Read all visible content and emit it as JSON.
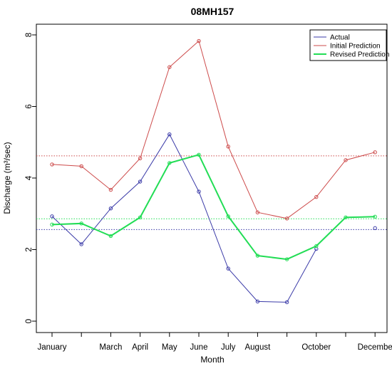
{
  "chart_data": {
    "type": "line",
    "title": "08MH157",
    "xlabel": "Month",
    "ylabel": "Discharge (m³/sec)",
    "ylim": [
      0,
      8
    ],
    "yticks": [
      0,
      2,
      4,
      6,
      8
    ],
    "x": [
      1,
      2,
      3,
      4,
      5,
      6,
      7,
      8,
      9,
      10,
      11,
      12
    ],
    "x_tick_labels": [
      {
        "x": 1,
        "label": "January"
      },
      {
        "x": 3,
        "label": "March"
      },
      {
        "x": 4,
        "label": "April"
      },
      {
        "x": 5,
        "label": "May"
      },
      {
        "x": 6,
        "label": "June"
      },
      {
        "x": 7,
        "label": "July"
      },
      {
        "x": 8,
        "label": "August"
      },
      {
        "x": 10,
        "label": "October"
      },
      {
        "x": 12,
        "label": "Decembe"
      }
    ],
    "legend_position": "top-right",
    "series": [
      {
        "name": "Actual",
        "color": "#3b3ba8",
        "values": [
          2.93,
          2.15,
          3.15,
          3.9,
          5.22,
          3.62,
          1.47,
          0.55,
          0.53,
          2.02,
          null,
          2.6
        ]
      },
      {
        "name": "Initial Prediction",
        "color": "#cd4b4b",
        "values": [
          4.38,
          4.33,
          3.67,
          4.55,
          7.1,
          7.83,
          4.88,
          3.04,
          2.87,
          3.47,
          4.5,
          4.72
        ]
      },
      {
        "name": "Revised Prediction",
        "color": "#22dd55",
        "values": [
          2.7,
          2.73,
          2.38,
          2.9,
          4.42,
          4.65,
          2.93,
          1.83,
          1.73,
          2.1,
          2.9,
          2.92
        ]
      }
    ],
    "reference_lines": [
      {
        "y": 4.62,
        "color": "#cd4b4b"
      },
      {
        "y": 2.86,
        "color": "#22dd55"
      },
      {
        "y": 2.56,
        "color": "#3b3ba8"
      }
    ]
  }
}
